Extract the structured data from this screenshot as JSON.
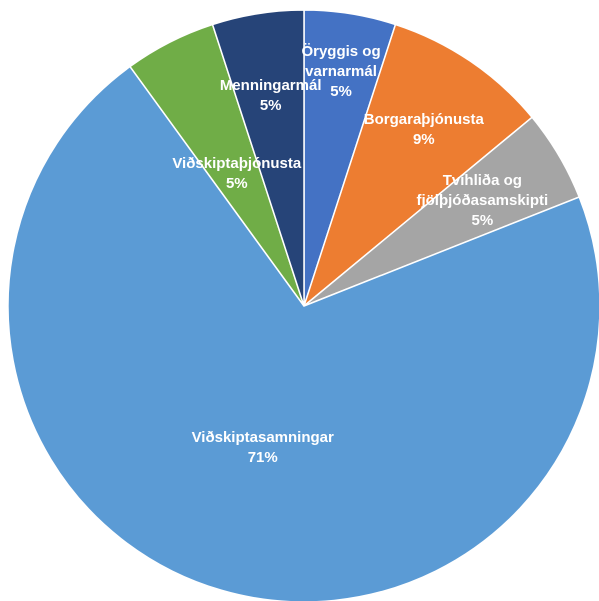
{
  "chart_data": {
    "type": "pie",
    "categories": [
      "Öryggis og varnarmál",
      "Borgaraþjónusta",
      "Tvíhliða og fjölþjóðasamskipti",
      "Viðskiptasamningar",
      "Viðskiptaþjónusta",
      "Menningarmál"
    ],
    "values": [
      5,
      9,
      5,
      71,
      5,
      5
    ],
    "value_labels": [
      "5%",
      "9%",
      "5%",
      "71%",
      "5%",
      "5%"
    ],
    "colors": [
      "#4472c4",
      "#ed7d31",
      "#a5a5a5",
      "#5b9bd5",
      "#70ad47",
      "#264478"
    ]
  }
}
